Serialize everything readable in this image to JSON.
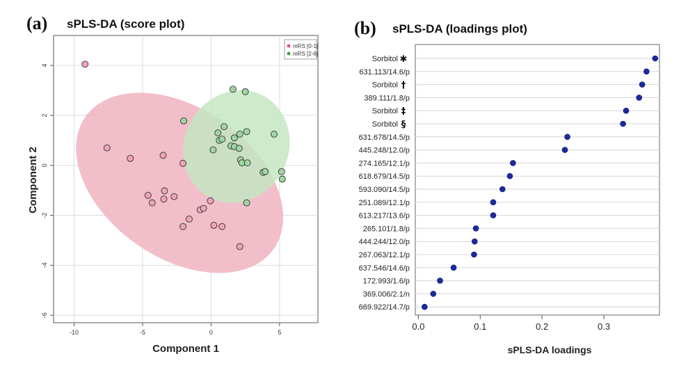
{
  "chart_data": [
    {
      "panel": "(a)",
      "type": "scatter",
      "title": "sPLS-DA (score plot)",
      "xlabel": "Component 1",
      "ylabel": "Component 2",
      "xlim": [
        -11.5,
        7.8
      ],
      "ylim": [
        -6.3,
        5.2
      ],
      "xticks": [
        -10,
        -5,
        0,
        5
      ],
      "yticks": [
        -6,
        -4,
        -2,
        0,
        2,
        4
      ],
      "grid": true,
      "legend_position": "top-right",
      "series": [
        {
          "name": "mRS [0-1]",
          "color": "#e0577a",
          "fill": "#efa4b6",
          "ellipse_fill": "#f0b3c1",
          "points": [
            [
              -9.2,
              4.05
            ],
            [
              -7.6,
              0.7
            ],
            [
              -5.9,
              0.28
            ],
            [
              -3.5,
              0.4
            ],
            [
              -2.05,
              0.08
            ],
            [
              -4.6,
              -1.2
            ],
            [
              -4.3,
              -1.5
            ],
            [
              -3.4,
              -1.02
            ],
            [
              -3.45,
              -1.35
            ],
            [
              -2.7,
              -1.25
            ],
            [
              -2.05,
              -2.45
            ],
            [
              -1.6,
              -2.15
            ],
            [
              -0.8,
              -1.78
            ],
            [
              -0.55,
              -1.72
            ],
            [
              -0.05,
              -1.42
            ],
            [
              0.2,
              -2.4
            ],
            [
              0.8,
              -2.45
            ],
            [
              2.1,
              -3.25
            ]
          ],
          "ellipse": {
            "center": [
              -2.3,
              -0.7
            ],
            "semi_axes": [
              8.4,
              3.0
            ],
            "angle_deg": -35
          }
        },
        {
          "name": "mRS [2-6]",
          "color": "#3aa84a",
          "fill": "#9fd6a0",
          "ellipse_fill": "#c4e6c2",
          "points": [
            [
              -2.0,
              1.78
            ],
            [
              1.6,
              3.05
            ],
            [
              2.5,
              2.95
            ],
            [
              0.95,
              1.55
            ],
            [
              0.5,
              1.3
            ],
            [
              1.7,
              1.1
            ],
            [
              2.1,
              1.25
            ],
            [
              2.6,
              1.35
            ],
            [
              4.6,
              1.25
            ],
            [
              0.6,
              1.0
            ],
            [
              0.8,
              1.05
            ],
            [
              1.45,
              0.78
            ],
            [
              1.7,
              0.75
            ],
            [
              2.05,
              0.68
            ],
            [
              0.15,
              0.62
            ],
            [
              2.15,
              0.22
            ],
            [
              2.25,
              0.1
            ],
            [
              2.65,
              0.1
            ],
            [
              3.8,
              -0.28
            ],
            [
              3.95,
              -0.25
            ],
            [
              5.15,
              -0.25
            ],
            [
              5.2,
              -0.55
            ],
            [
              2.6,
              -1.5
            ]
          ],
          "ellipse": {
            "center": [
              1.85,
              0.75
            ],
            "semi_axes": [
              3.8,
              2.3
            ],
            "angle_deg": -28
          }
        }
      ]
    },
    {
      "panel": "(b)",
      "type": "dot",
      "title": "sPLS-DA (loadings plot)",
      "xlabel": "sPLS-DA loadings",
      "ylabel": "",
      "xlim": [
        -0.005,
        0.39
      ],
      "xticks": [
        "0.0",
        "0.1",
        "0.2",
        "0.3"
      ],
      "xtick_values": [
        0,
        0.1,
        0.2,
        0.3
      ],
      "grid": true,
      "color": "#1c2a9e",
      "categories": [
        "Sorbitol",
        "631.113/14.6/p",
        "Sorbitol",
        "389.111/1.8/p",
        "Sorbitol",
        "Sorbitol",
        "631.678/14.5/p",
        "445.248/12.0/p",
        "274.165/12.1/p",
        "618.679/14.5/p",
        "593.090/14.5/p",
        "251.089/12.1/p",
        "613.217/13.6/p",
        "265.101/1.8/p",
        "444.244/12.0/p",
        "267.063/12.1/p",
        "637.546/14.6/p",
        "172.993/1.6/p",
        "369.006/2.1/n",
        "669.922/14.7/p"
      ],
      "annotations": [
        "✱",
        "",
        "†",
        "",
        "‡",
        "§",
        "",
        "",
        "",
        "",
        "",
        "",
        "",
        "",
        "",
        "",
        "",
        "",
        "",
        ""
      ],
      "values": [
        0.383,
        0.369,
        0.362,
        0.357,
        0.336,
        0.331,
        0.241,
        0.237,
        0.153,
        0.148,
        0.136,
        0.121,
        0.121,
        0.093,
        0.091,
        0.09,
        0.057,
        0.035,
        0.024,
        0.01
      ]
    }
  ]
}
